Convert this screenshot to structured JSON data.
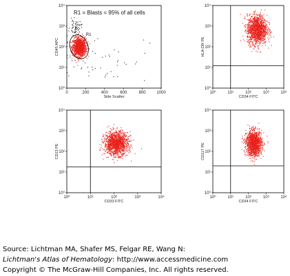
{
  "chart_data": [
    {
      "type": "scatter",
      "panel": "top-left",
      "x_scale": "linear",
      "y_scale": "log",
      "xlabel": "Side Scatter",
      "ylabel": "CD45 APC",
      "xlim": [
        0,
        1000
      ],
      "ylim": [
        1,
        10000
      ],
      "x_ticks": [
        "0",
        "200",
        "400",
        "600",
        "800",
        "1000"
      ],
      "y_ticks": [
        "10⁰",
        "10¹",
        "10²",
        "10³",
        "10⁴"
      ],
      "annotation": "R1 = Blasts = 95% of all cells",
      "gate_label": "R1",
      "clusters": [
        {
          "color": "#e8221c",
          "x_center": 130,
          "y_center": 100,
          "spread_x": 35,
          "spread_y_log": 0.22,
          "fraction": 0.95
        },
        {
          "color": "#222222",
          "x_center": 90,
          "y_center": 900,
          "spread_x": 30,
          "spread_y_log": 0.18,
          "fraction": 0.03
        },
        {
          "color": "#222222",
          "x_center": 350,
          "y_center": 30,
          "spread_x": 250,
          "spread_y_log": 0.6,
          "fraction": 0.02
        }
      ]
    },
    {
      "type": "scatter",
      "panel": "top-right",
      "x_scale": "log",
      "y_scale": "log",
      "xlabel": "CD34 FITC",
      "ylabel": "HLA-DR PE",
      "xlim": [
        1,
        10000
      ],
      "ylim": [
        1,
        10000
      ],
      "x_ticks": [
        "10⁰",
        "10¹",
        "10²",
        "10³",
        "10⁴"
      ],
      "y_ticks": [
        "10⁰",
        "10¹",
        "10²",
        "10³",
        "10⁴"
      ],
      "quadrant": {
        "x": 10,
        "y": 12
      },
      "clusters": [
        {
          "color": "#e8221c",
          "x_center": 300,
          "y_center": 700,
          "spread_x_log": 0.28,
          "spread_y_log": 0.35
        }
      ]
    },
    {
      "type": "scatter",
      "panel": "bottom-left",
      "x_scale": "log",
      "y_scale": "log",
      "xlabel": "CD33 FITC",
      "ylabel": "CD13 PE",
      "xlim": [
        1,
        10000
      ],
      "ylim": [
        1,
        10000
      ],
      "x_ticks": [
        "10⁰",
        "10¹",
        "10²",
        "10³",
        "10⁴"
      ],
      "y_ticks": [
        "10⁰",
        "10¹",
        "10²",
        "10³",
        "10⁴"
      ],
      "quadrant": {
        "x": 10,
        "y": 18
      },
      "clusters": [
        {
          "color": "#e8221c",
          "x_center": 120,
          "y_center": 250,
          "spread_x_log": 0.25,
          "spread_y_log": 0.28
        }
      ]
    },
    {
      "type": "scatter",
      "panel": "bottom-right",
      "x_scale": "log",
      "y_scale": "log",
      "xlabel": "CD34 FITC",
      "ylabel": "CD117 PE",
      "xlim": [
        1,
        10000
      ],
      "ylim": [
        1,
        10000
      ],
      "x_ticks": [
        "10⁰",
        "10¹",
        "10²",
        "10³",
        "10⁴"
      ],
      "y_ticks": [
        "10⁰",
        "10¹",
        "10²",
        "10³",
        "10⁴"
      ],
      "quadrant": {
        "x": 10,
        "y": 20
      },
      "clusters": [
        {
          "color": "#e8221c",
          "x_center": 200,
          "y_center": 250,
          "spread_x_log": 0.22,
          "spread_y_log": 0.3
        }
      ]
    }
  ],
  "citation": {
    "source": "Source: Lichtman MA, Shafer MS, Felgar RE, Wang N:",
    "book": "Lichtman's Atlas of Hematology",
    "url": ": http://www.accessmedicine.com",
    "copyright": "Copyright © The McGraw-Hill Companies, Inc. All rights reserved."
  }
}
